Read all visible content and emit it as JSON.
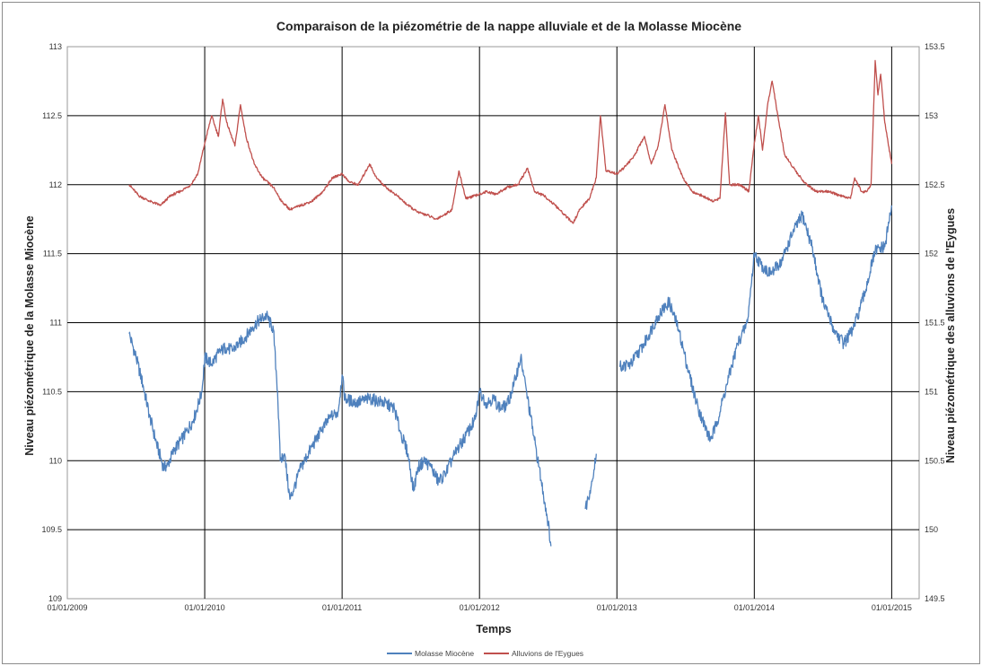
{
  "chart_data": {
    "type": "line",
    "title": "Comparaison de la piézométrie de la nappe alluviale et de la Molasse Miocène",
    "xlabel": "Temps",
    "ylabel_left": "Niveau piézométrique de la Molasse Miocène",
    "ylabel_right": "Niveau piézométrique des alluvions de l'Eygues",
    "x_ticks": [
      "01/01/2009",
      "01/01/2010",
      "01/01/2011",
      "01/01/2012",
      "01/01/2013",
      "01/01/2014",
      "01/01/2015"
    ],
    "xlim": [
      2009.0,
      2015.2
    ],
    "y_left_ticks": [
      "109",
      "109.5",
      "110",
      "110.5",
      "111",
      "111.5",
      "112",
      "112.5",
      "113"
    ],
    "ylim_left": [
      109,
      113
    ],
    "y_right_ticks": [
      "149.5",
      "150",
      "150.5",
      "151",
      "151.5",
      "152",
      "152.5",
      "153",
      "153.5"
    ],
    "ylim_right": [
      149.5,
      153.5
    ],
    "grid": true,
    "legend_position": "bottom",
    "series": [
      {
        "name": "Molasse Miocène",
        "axis": "left",
        "color": "#4f81bd",
        "points": [
          [
            2009.45,
            110.92
          ],
          [
            2009.5,
            110.75
          ],
          [
            2009.55,
            110.55
          ],
          [
            2009.6,
            110.32
          ],
          [
            2009.65,
            110.12
          ],
          [
            2009.7,
            109.95
          ],
          [
            2009.73,
            109.97
          ],
          [
            2009.78,
            110.08
          ],
          [
            2009.85,
            110.18
          ],
          [
            2009.92,
            110.3
          ],
          [
            2009.98,
            110.5
          ],
          [
            2010.0,
            110.75
          ],
          [
            2010.05,
            110.7
          ],
          [
            2010.1,
            110.78
          ],
          [
            2010.15,
            110.82
          ],
          [
            2010.2,
            110.8
          ],
          [
            2010.25,
            110.85
          ],
          [
            2010.3,
            110.9
          ],
          [
            2010.35,
            110.97
          ],
          [
            2010.4,
            111.02
          ],
          [
            2010.45,
            111.05
          ],
          [
            2010.5,
            110.95
          ],
          [
            2010.53,
            110.5
          ],
          [
            2010.55,
            110.0
          ],
          [
            2010.58,
            110.05
          ],
          [
            2010.62,
            109.72
          ],
          [
            2010.65,
            109.8
          ],
          [
            2010.7,
            109.95
          ],
          [
            2010.78,
            110.1
          ],
          [
            2010.85,
            110.22
          ],
          [
            2010.92,
            110.32
          ],
          [
            2010.97,
            110.35
          ],
          [
            2011.0,
            110.62
          ],
          [
            2011.02,
            110.45
          ],
          [
            2011.1,
            110.42
          ],
          [
            2011.2,
            110.45
          ],
          [
            2011.3,
            110.42
          ],
          [
            2011.38,
            110.38
          ],
          [
            2011.42,
            110.22
          ],
          [
            2011.48,
            110.05
          ],
          [
            2011.52,
            109.78
          ],
          [
            2011.55,
            109.95
          ],
          [
            2011.6,
            110.0
          ],
          [
            2011.65,
            109.95
          ],
          [
            2011.7,
            109.85
          ],
          [
            2011.75,
            109.9
          ],
          [
            2011.82,
            110.05
          ],
          [
            2011.9,
            110.18
          ],
          [
            2011.97,
            110.3
          ],
          [
            2012.0,
            110.5
          ],
          [
            2012.05,
            110.42
          ],
          [
            2012.1,
            110.45
          ],
          [
            2012.15,
            110.38
          ],
          [
            2012.2,
            110.4
          ],
          [
            2012.25,
            110.55
          ],
          [
            2012.3,
            110.75
          ],
          [
            2012.35,
            110.45
          ],
          [
            2012.4,
            110.15
          ],
          [
            2012.45,
            109.85
          ],
          [
            2012.5,
            109.55
          ],
          [
            2012.52,
            109.38
          ],
          null,
          [
            2012.77,
            109.65
          ],
          [
            2012.82,
            109.85
          ],
          [
            2012.85,
            110.05
          ],
          null,
          [
            2013.02,
            110.68
          ],
          [
            2013.1,
            110.7
          ],
          [
            2013.2,
            110.85
          ],
          [
            2013.3,
            111.05
          ],
          [
            2013.38,
            111.15
          ],
          [
            2013.45,
            110.95
          ],
          [
            2013.52,
            110.65
          ],
          [
            2013.58,
            110.42
          ],
          [
            2013.62,
            110.3
          ],
          [
            2013.68,
            110.15
          ],
          [
            2013.72,
            110.25
          ],
          [
            2013.8,
            110.55
          ],
          [
            2013.88,
            110.85
          ],
          [
            2013.95,
            111.0
          ],
          [
            2014.0,
            111.5
          ],
          [
            2014.05,
            111.42
          ],
          [
            2014.12,
            111.35
          ],
          [
            2014.2,
            111.45
          ],
          [
            2014.28,
            111.65
          ],
          [
            2014.35,
            111.78
          ],
          [
            2014.42,
            111.55
          ],
          [
            2014.5,
            111.15
          ],
          [
            2014.58,
            110.95
          ],
          [
            2014.65,
            110.85
          ],
          [
            2014.72,
            110.95
          ],
          [
            2014.8,
            111.2
          ],
          [
            2014.88,
            111.52
          ],
          [
            2014.95,
            111.55
          ],
          [
            2015.0,
            111.85
          ]
        ]
      },
      {
        "name": "Alluvions de l'Eygues",
        "axis": "right",
        "color": "#c0504d",
        "points": [
          [
            2009.45,
            152.5
          ],
          [
            2009.52,
            152.42
          ],
          [
            2009.6,
            152.38
          ],
          [
            2009.68,
            152.35
          ],
          [
            2009.75,
            152.42
          ],
          [
            2009.82,
            152.45
          ],
          [
            2009.9,
            152.5
          ],
          [
            2009.95,
            152.58
          ],
          [
            2010.0,
            152.8
          ],
          [
            2010.05,
            153.0
          ],
          [
            2010.1,
            152.85
          ],
          [
            2010.13,
            153.12
          ],
          [
            2010.16,
            152.95
          ],
          [
            2010.22,
            152.78
          ],
          [
            2010.26,
            153.08
          ],
          [
            2010.3,
            152.85
          ],
          [
            2010.36,
            152.65
          ],
          [
            2010.42,
            152.55
          ],
          [
            2010.5,
            152.48
          ],
          [
            2010.56,
            152.38
          ],
          [
            2010.62,
            152.32
          ],
          [
            2010.7,
            152.35
          ],
          [
            2010.78,
            152.38
          ],
          [
            2010.86,
            152.45
          ],
          [
            2010.93,
            152.55
          ],
          [
            2011.0,
            152.58
          ],
          [
            2011.05,
            152.52
          ],
          [
            2011.12,
            152.5
          ],
          [
            2011.2,
            152.65
          ],
          [
            2011.25,
            152.55
          ],
          [
            2011.32,
            152.48
          ],
          [
            2011.4,
            152.42
          ],
          [
            2011.48,
            152.35
          ],
          [
            2011.55,
            152.3
          ],
          [
            2011.62,
            152.28
          ],
          [
            2011.68,
            152.25
          ],
          [
            2011.74,
            152.28
          ],
          [
            2011.8,
            152.32
          ],
          [
            2011.85,
            152.6
          ],
          [
            2011.9,
            152.4
          ],
          [
            2011.97,
            152.42
          ],
          [
            2012.05,
            152.45
          ],
          [
            2012.12,
            152.43
          ],
          [
            2012.2,
            152.48
          ],
          [
            2012.28,
            152.5
          ],
          [
            2012.35,
            152.62
          ],
          [
            2012.4,
            152.45
          ],
          [
            2012.47,
            152.42
          ],
          [
            2012.55,
            152.35
          ],
          [
            2012.62,
            152.28
          ],
          [
            2012.68,
            152.22
          ],
          [
            2012.73,
            152.32
          ],
          [
            2012.8,
            152.4
          ],
          [
            2012.85,
            152.55
          ],
          [
            2012.88,
            153.0
          ],
          [
            2012.92,
            152.6
          ],
          [
            2013.0,
            152.58
          ],
          [
            2013.05,
            152.62
          ],
          [
            2013.12,
            152.7
          ],
          [
            2013.2,
            152.85
          ],
          [
            2013.25,
            152.65
          ],
          [
            2013.3,
            152.78
          ],
          [
            2013.35,
            153.08
          ],
          [
            2013.4,
            152.75
          ],
          [
            2013.48,
            152.55
          ],
          [
            2013.55,
            152.45
          ],
          [
            2013.62,
            152.42
          ],
          [
            2013.7,
            152.38
          ],
          [
            2013.75,
            152.4
          ],
          [
            2013.79,
            153.02
          ],
          [
            2013.82,
            152.5
          ],
          [
            2013.9,
            152.5
          ],
          [
            2013.96,
            152.45
          ],
          [
            2014.0,
            152.8
          ],
          [
            2014.03,
            153.0
          ],
          [
            2014.06,
            152.75
          ],
          [
            2014.1,
            153.1
          ],
          [
            2014.13,
            153.25
          ],
          [
            2014.18,
            152.95
          ],
          [
            2014.22,
            152.72
          ],
          [
            2014.3,
            152.6
          ],
          [
            2014.38,
            152.5
          ],
          [
            2014.45,
            152.45
          ],
          [
            2014.55,
            152.45
          ],
          [
            2014.62,
            152.42
          ],
          [
            2014.7,
            152.4
          ],
          [
            2014.73,
            152.55
          ],
          [
            2014.78,
            152.45
          ],
          [
            2014.82,
            152.45
          ],
          [
            2014.85,
            152.5
          ],
          [
            2014.88,
            153.4
          ],
          [
            2014.9,
            153.15
          ],
          [
            2014.92,
            153.3
          ],
          [
            2014.95,
            152.95
          ],
          [
            2015.0,
            152.65
          ]
        ]
      }
    ]
  }
}
